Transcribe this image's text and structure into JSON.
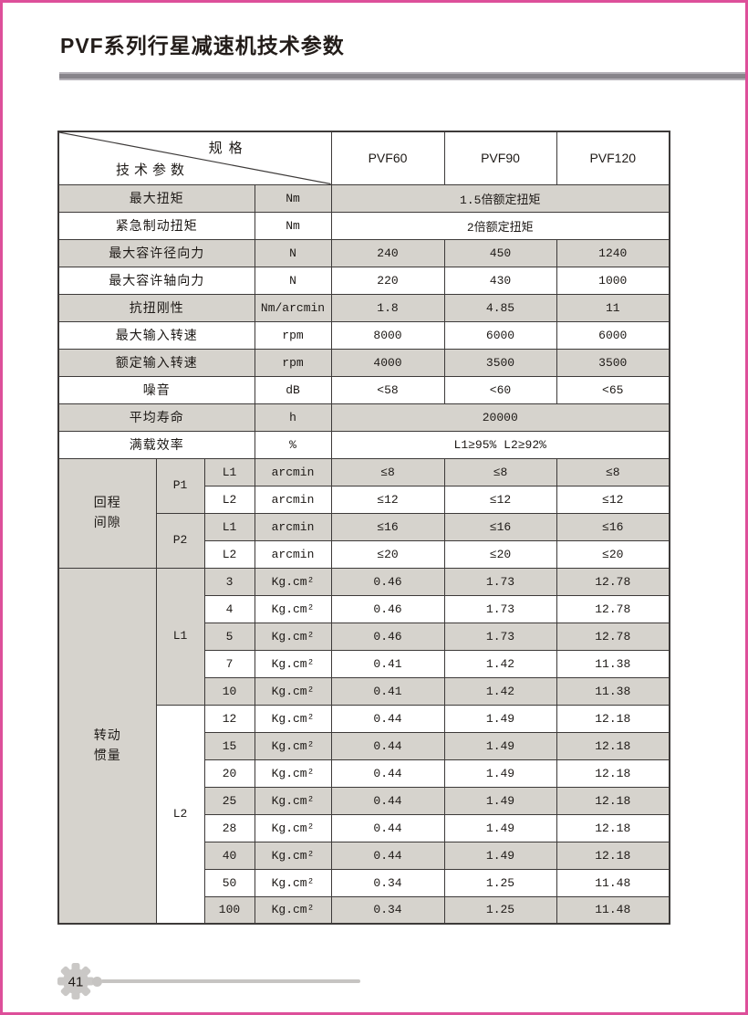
{
  "page": {
    "title": "PVF系列行星减速机技术参数"
  },
  "colors": {
    "accent_pink": "#dd4f9a",
    "row_gray": "#d6d3cd",
    "rule_gray": "#87848a",
    "table_line": "#3d3a39",
    "footer_gray": "#c6c4c2"
  },
  "table": {
    "corner": {
      "top_right": "规格",
      "bottom_left": "技术参数"
    },
    "models": [
      "PVF60",
      "PVF90",
      "PVF120"
    ],
    "simple_rows": [
      {
        "param": "最大扭矩",
        "unit": "Nm",
        "span_value": "1.5倍额定扭矩"
      },
      {
        "param": "紧急制动扭矩",
        "unit": "Nm",
        "span_value": "2倍额定扭矩"
      },
      {
        "param": "最大容许径向力",
        "unit": "N",
        "values": [
          "240",
          "450",
          "1240"
        ]
      },
      {
        "param": "最大容许轴向力",
        "unit": "N",
        "values": [
          "220",
          "430",
          "1000"
        ]
      },
      {
        "param": "抗扭刚性",
        "unit": "Nm/arcmin",
        "values": [
          "1.8",
          "4.85",
          "11"
        ]
      },
      {
        "param": "最大输入转速",
        "unit": "rpm",
        "values": [
          "8000",
          "6000",
          "6000"
        ]
      },
      {
        "param": "额定输入转速",
        "unit": "rpm",
        "values": [
          "4000",
          "3500",
          "3500"
        ]
      },
      {
        "param": "噪音",
        "unit": "dB",
        "values": [
          "<58",
          "<60",
          "<65"
        ]
      },
      {
        "param": "平均寿命",
        "unit": "h",
        "span_value": "20000"
      },
      {
        "param": "满载效率",
        "unit": "%",
        "span_value": "L1≥95%  L2≥92%"
      }
    ],
    "backlash": {
      "label": "回程间隙",
      "label_lines": [
        "回程",
        "间隙"
      ],
      "groups": [
        {
          "grade": "P1",
          "rows": [
            {
              "stage": "L1",
              "unit": "arcmin",
              "values": [
                "≤8",
                "≤8",
                "≤8"
              ]
            },
            {
              "stage": "L2",
              "unit": "arcmin",
              "values": [
                "≤12",
                "≤12",
                "≤12"
              ]
            }
          ]
        },
        {
          "grade": "P2",
          "rows": [
            {
              "stage": "L1",
              "unit": "arcmin",
              "values": [
                "≤16",
                "≤16",
                "≤16"
              ]
            },
            {
              "stage": "L2",
              "unit": "arcmin",
              "values": [
                "≤20",
                "≤20",
                "≤20"
              ]
            }
          ]
        }
      ]
    },
    "inertia": {
      "label": "转动惯量",
      "label_lines": [
        "转动",
        "惯量"
      ],
      "groups": [
        {
          "stage": "L1",
          "rows": [
            {
              "ratio": "3",
              "unit": "Kg.cm²",
              "values": [
                "0.46",
                "1.73",
                "12.78"
              ]
            },
            {
              "ratio": "4",
              "unit": "Kg.cm²",
              "values": [
                "0.46",
                "1.73",
                "12.78"
              ]
            },
            {
              "ratio": "5",
              "unit": "Kg.cm²",
              "values": [
                "0.46",
                "1.73",
                "12.78"
              ]
            },
            {
              "ratio": "7",
              "unit": "Kg.cm²",
              "values": [
                "0.41",
                "1.42",
                "11.38"
              ]
            },
            {
              "ratio": "10",
              "unit": "Kg.cm²",
              "values": [
                "0.41",
                "1.42",
                "11.38"
              ]
            }
          ]
        },
        {
          "stage": "L2",
          "rows": [
            {
              "ratio": "12",
              "unit": "Kg.cm²",
              "values": [
                "0.44",
                "1.49",
                "12.18"
              ]
            },
            {
              "ratio": "15",
              "unit": "Kg.cm²",
              "values": [
                "0.44",
                "1.49",
                "12.18"
              ]
            },
            {
              "ratio": "20",
              "unit": "Kg.cm²",
              "values": [
                "0.44",
                "1.49",
                "12.18"
              ]
            },
            {
              "ratio": "25",
              "unit": "Kg.cm²",
              "values": [
                "0.44",
                "1.49",
                "12.18"
              ]
            },
            {
              "ratio": "28",
              "unit": "Kg.cm²",
              "values": [
                "0.44",
                "1.49",
                "12.18"
              ]
            },
            {
              "ratio": "40",
              "unit": "Kg.cm²",
              "values": [
                "0.44",
                "1.49",
                "12.18"
              ]
            },
            {
              "ratio": "50",
              "unit": "Kg.cm²",
              "values": [
                "0.34",
                "1.25",
                "11.48"
              ]
            },
            {
              "ratio": "100",
              "unit": "Kg.cm²",
              "values": [
                "0.34",
                "1.25",
                "11.48"
              ]
            }
          ]
        }
      ]
    }
  },
  "footer": {
    "page_number": "41"
  }
}
